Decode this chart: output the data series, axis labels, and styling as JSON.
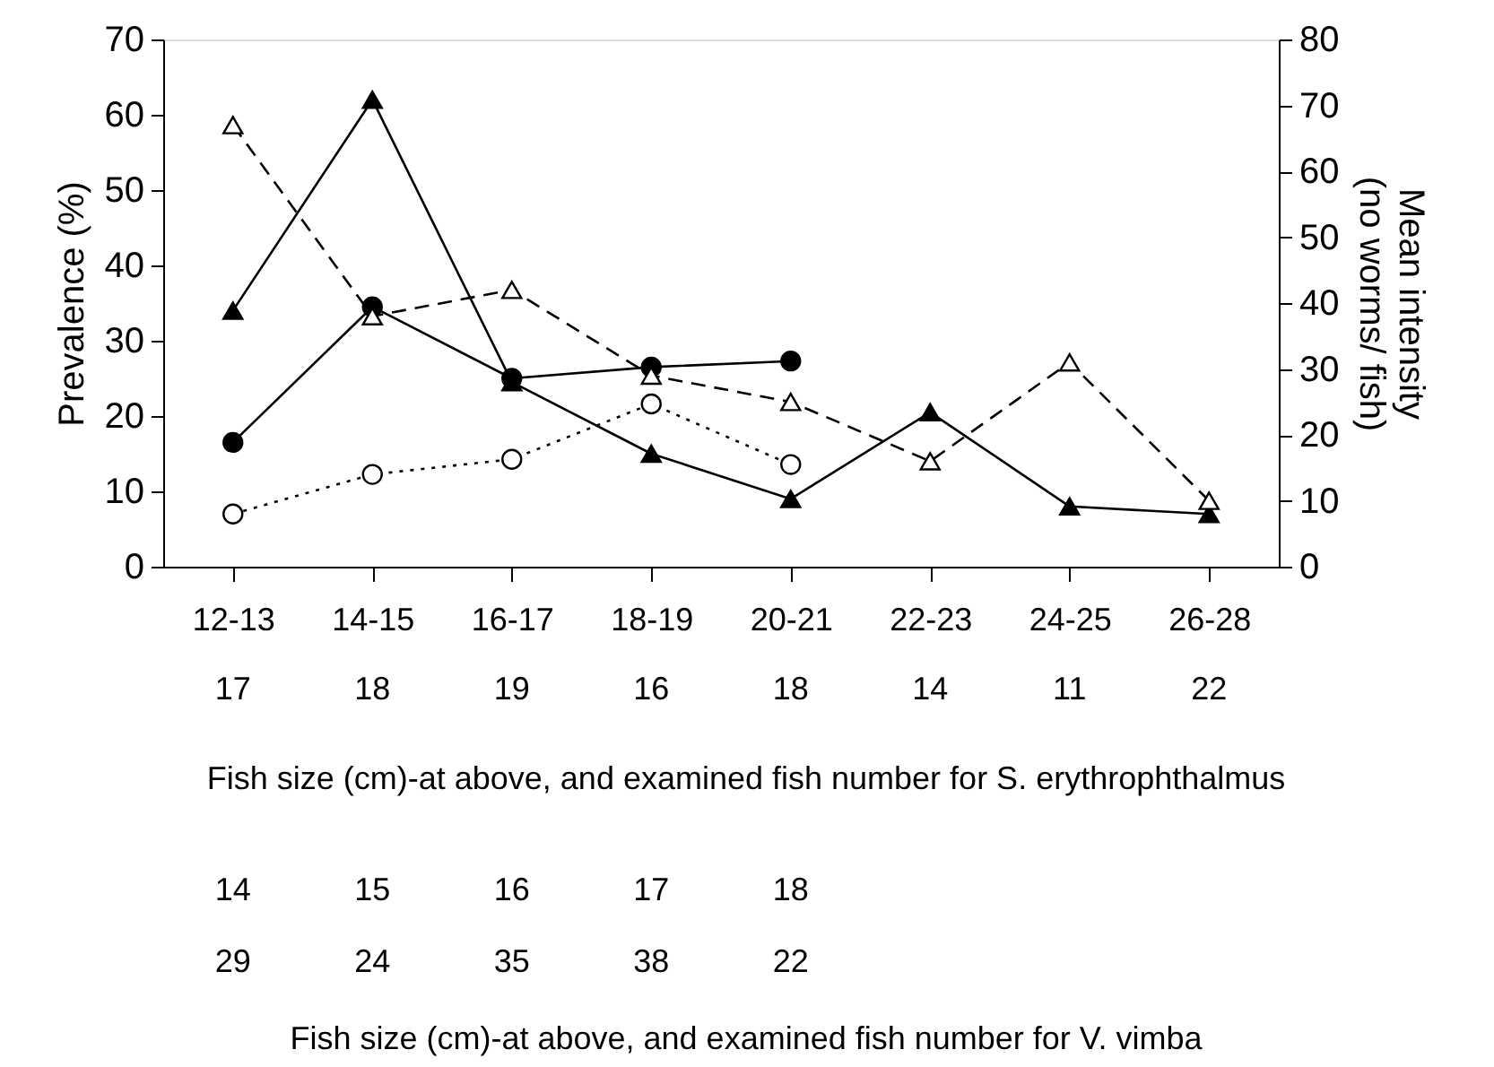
{
  "chart_data": {
    "type": "line",
    "ylabel": "Prevalence (%)",
    "y2label": "Mean intensity\n(no worms/ fish)",
    "xlabel": "Fish size (cm)-at above, and examined fish number for S. erythrophthalmus",
    "categories": [
      "12-13",
      "14-15",
      "16-17",
      "18-19",
      "20-21",
      "22-23",
      "24-25",
      "26-28"
    ],
    "ylim": [
      0,
      70
    ],
    "yticks": [
      0,
      10,
      20,
      30,
      40,
      50,
      60,
      70
    ],
    "y2lim": [
      0,
      80
    ],
    "y2ticks": [
      0,
      10,
      20,
      30,
      40,
      50,
      60,
      70,
      80
    ],
    "grid": false,
    "series": [
      {
        "color": "#000000",
        "marker": "triangle",
        "line_style": "solid",
        "values": [
          34,
          62,
          24.5,
          15,
          9,
          20.5,
          8,
          7
        ]
      },
      {
        "color": "#000000",
        "marker": "triangle",
        "line_style": "dashed",
        "axis": "y2",
        "values": [
          67,
          38,
          42,
          29,
          25,
          16,
          31,
          10
        ]
      },
      {
        "color": "#000000",
        "marker": "circle",
        "line_style": "solid",
        "values": [
          16.5,
          34.5,
          25,
          26.5,
          27.3,
          null,
          null,
          null
        ]
      },
      {
        "color": "#000000",
        "marker": "circle",
        "line_style": "dotted",
        "axis": "y2",
        "values": [
          8,
          14,
          16.3,
          24.7,
          15.5,
          null,
          null,
          null
        ]
      }
    ],
    "annotations": [
      "17",
      "18",
      "19",
      "16",
      "18",
      "14",
      "11",
      "22",
      "14",
      "15",
      "16",
      "17",
      "18",
      "29",
      "24",
      "35",
      "38",
      "22",
      "Fish size (cm)-at above, and examined fish number for V. vimba"
    ]
  }
}
